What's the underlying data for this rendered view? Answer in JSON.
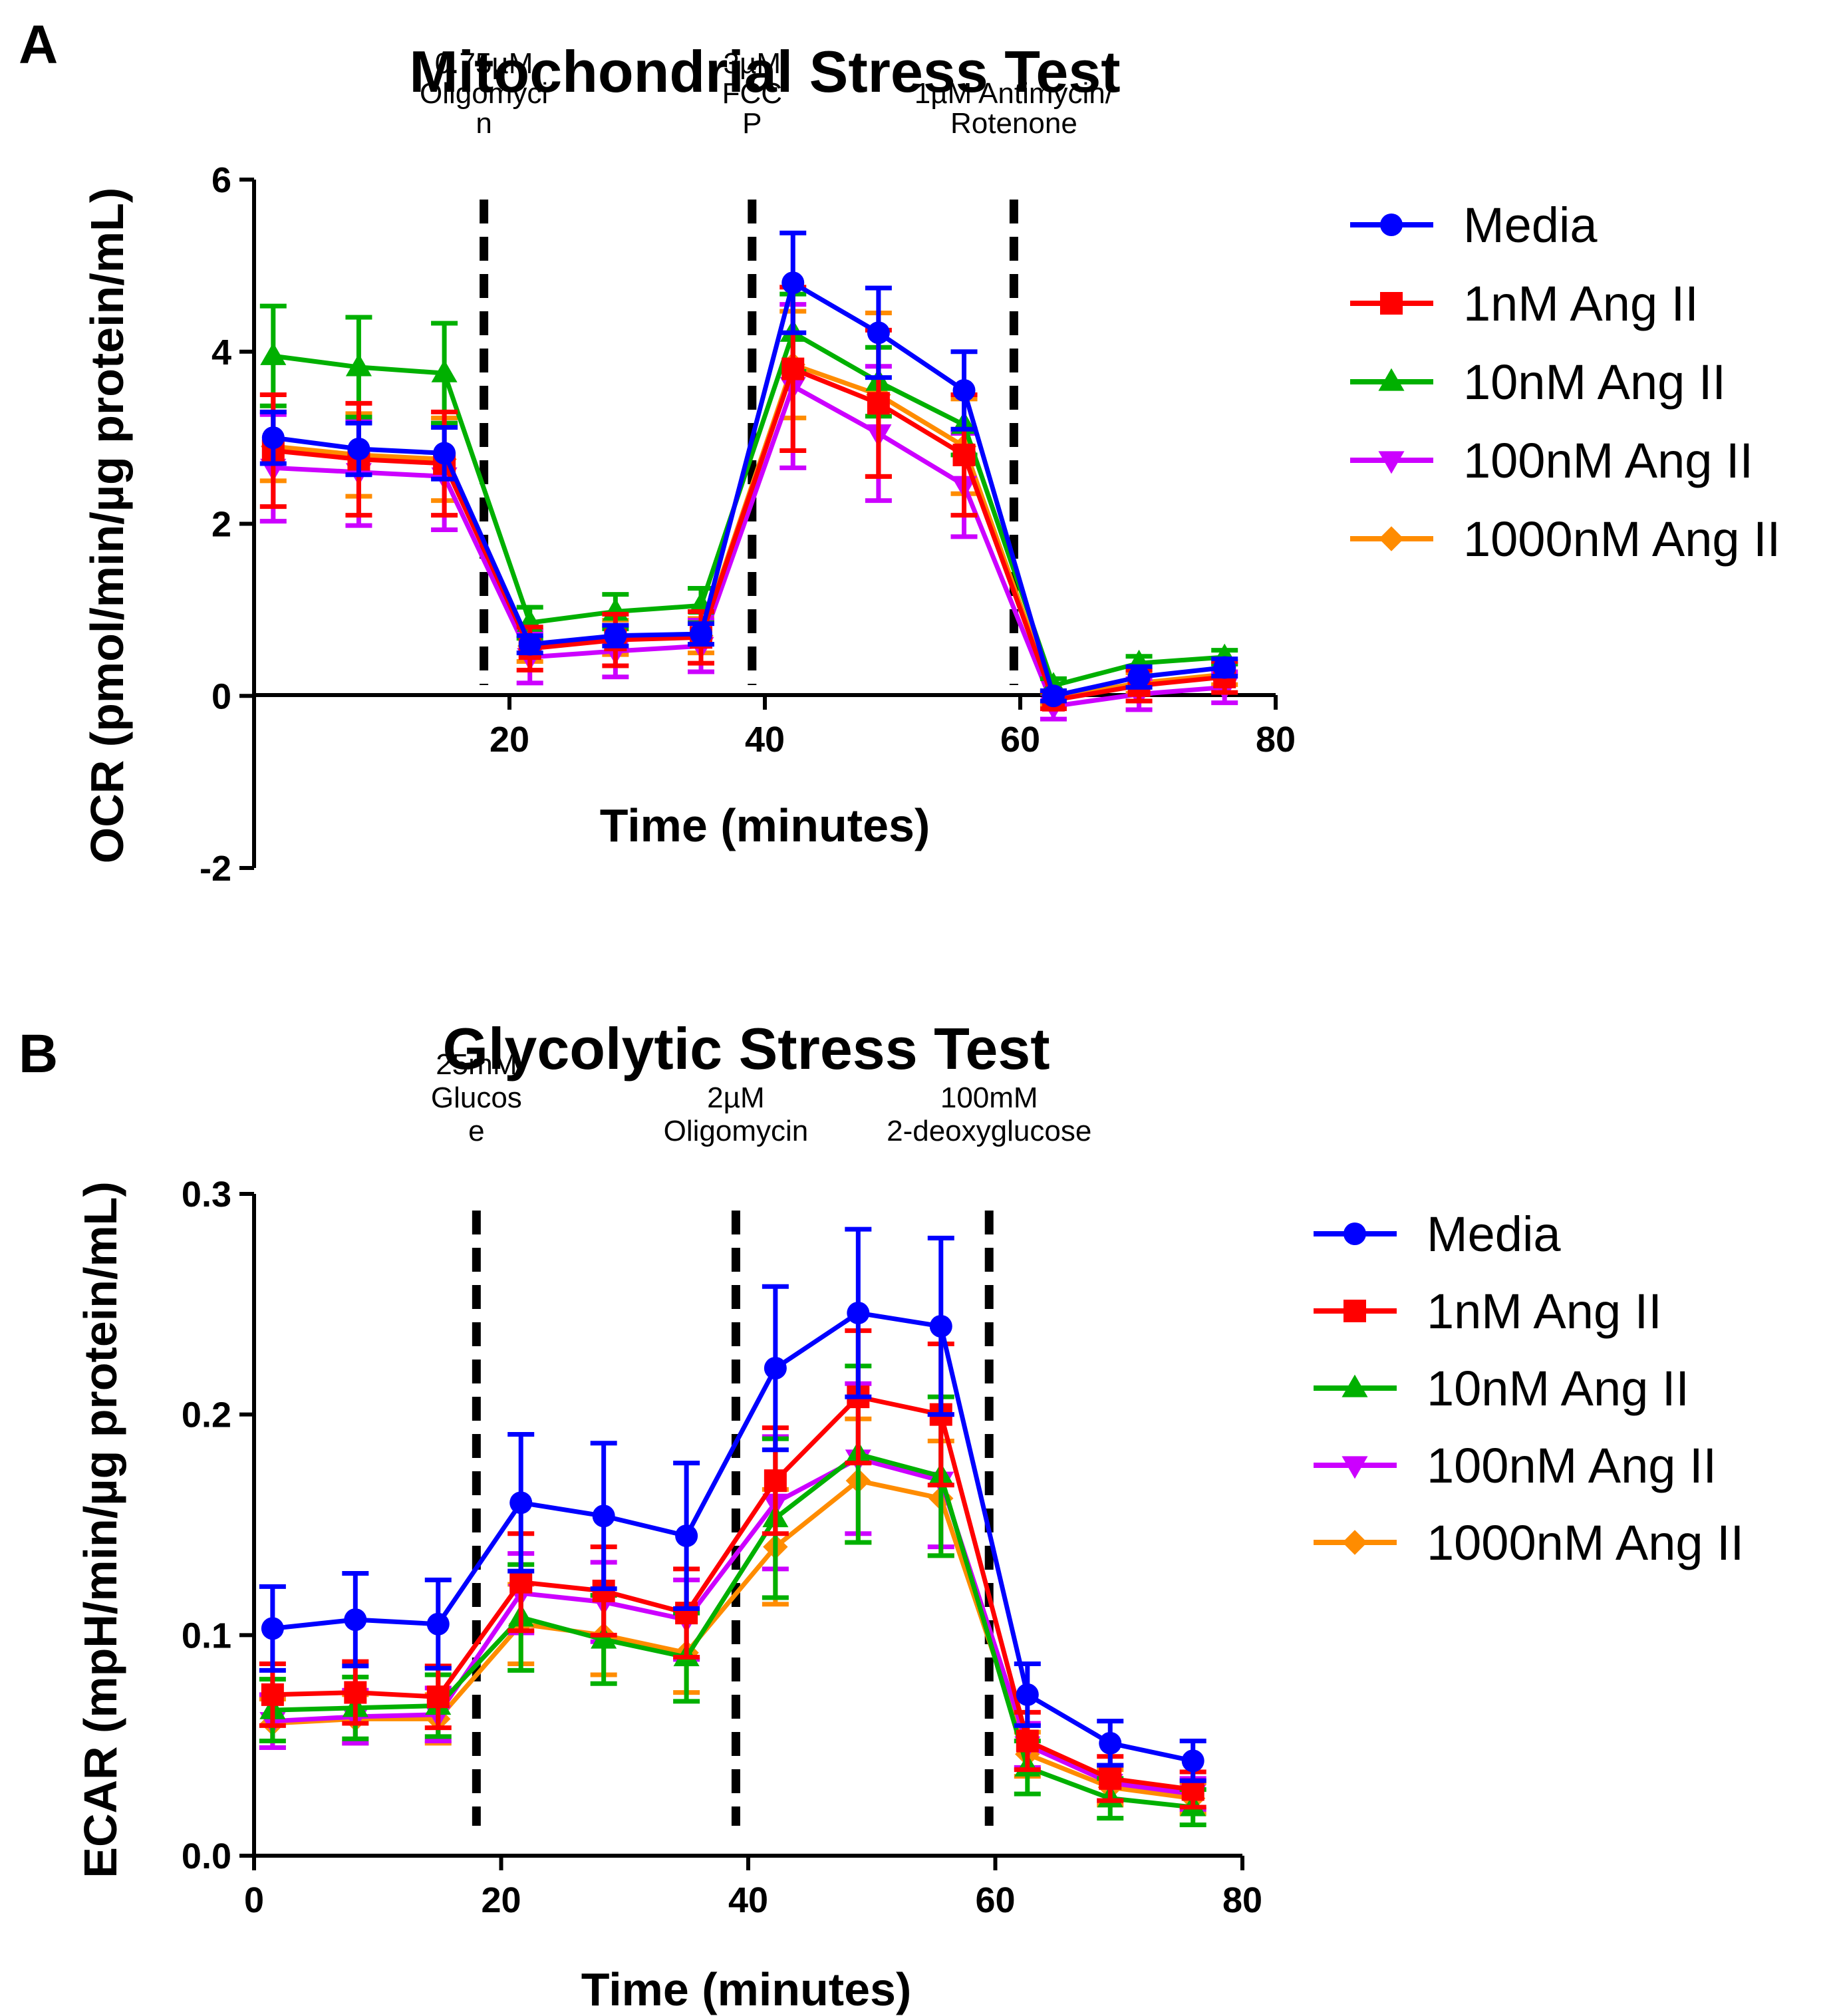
{
  "chart_data": [
    {
      "type": "line",
      "panel_letter": "A",
      "title": "Mitochondrial Stress Test",
      "xlabel": "Time (minutes)",
      "ylabel": "OCR (pmol/min/µg protein/mL)",
      "xlim": [
        0,
        80
      ],
      "ylim": [
        -2,
        6
      ],
      "xticks": [
        20,
        40,
        60,
        80
      ],
      "yticks": [
        -2,
        0,
        2,
        4,
        6
      ],
      "xtick_labels": [
        "20",
        "40",
        "60",
        "80"
      ],
      "ytick_labels": [
        "-2",
        "0",
        "2",
        "4",
        "6"
      ],
      "x": [
        1.5,
        8.2,
        14.9,
        21.6,
        28.3,
        35.0,
        42.2,
        48.9,
        55.6,
        62.6,
        69.3,
        76.0
      ],
      "injections": [
        {
          "x": 18,
          "lines": [
            "0.75µM",
            "Oligomyci",
            "n"
          ]
        },
        {
          "x": 39,
          "lines": [
            "3µM",
            "FCC",
            "P"
          ]
        },
        {
          "x": 59.5,
          "lines": [
            "1µM Antimycin/",
            "Rotenone"
          ]
        }
      ],
      "series": [
        {
          "name": "Media",
          "color": "#0000ff",
          "marker": "circle",
          "values": [
            3.0,
            2.87,
            2.82,
            0.6,
            0.7,
            0.72,
            4.8,
            4.22,
            3.55,
            0.0,
            0.22,
            0.33
          ],
          "errors": [
            0.3,
            0.3,
            0.3,
            0.1,
            0.12,
            0.12,
            0.58,
            0.52,
            0.45,
            0.06,
            0.12,
            0.1
          ]
        },
        {
          "name": "1nM Ang II",
          "color": "#ff0000",
          "marker": "square",
          "values": [
            2.85,
            2.75,
            2.7,
            0.55,
            0.65,
            0.68,
            3.8,
            3.4,
            2.8,
            -0.05,
            0.12,
            0.22
          ],
          "errors": [
            0.65,
            0.65,
            0.6,
            0.25,
            0.3,
            0.3,
            0.95,
            0.85,
            0.7,
            0.1,
            0.18,
            0.18
          ]
        },
        {
          "name": "10nM Ang II",
          "color": "#00b000",
          "marker": "triangle-up",
          "values": [
            3.95,
            3.82,
            3.75,
            0.85,
            0.98,
            1.05,
            4.22,
            3.65,
            3.15,
            0.12,
            0.38,
            0.45
          ],
          "errors": [
            0.58,
            0.58,
            0.58,
            0.18,
            0.2,
            0.2,
            0.45,
            0.4,
            0.35,
            0.08,
            0.08,
            0.08
          ]
        },
        {
          "name": "100nM Ang II",
          "color": "#cc00ff",
          "marker": "triangle-down",
          "values": [
            2.65,
            2.6,
            2.55,
            0.45,
            0.52,
            0.58,
            3.6,
            3.05,
            2.45,
            -0.12,
            0.02,
            0.1
          ],
          "errors": [
            0.62,
            0.62,
            0.62,
            0.3,
            0.3,
            0.3,
            0.95,
            0.78,
            0.6,
            0.15,
            0.18,
            0.18
          ]
        },
        {
          "name": "1000nM Ang II",
          "color": "#ff8c00",
          "marker": "diamond",
          "values": [
            2.9,
            2.8,
            2.75,
            0.58,
            0.68,
            0.7,
            3.85,
            3.5,
            2.9,
            -0.02,
            0.15,
            0.25
          ],
          "errors": [
            0.4,
            0.48,
            0.48,
            0.18,
            0.2,
            0.2,
            0.62,
            0.95,
            0.55,
            0.08,
            0.12,
            0.12
          ]
        }
      ]
    },
    {
      "type": "line",
      "panel_letter": "B",
      "title": "Glycolytic Stress Test",
      "xlabel": "Time (minutes)",
      "ylabel": "ECAR (mpH/min/µg protein/mL)",
      "xlim": [
        0,
        80
      ],
      "ylim": [
        0,
        0.3
      ],
      "xticks": [
        0,
        20,
        40,
        60,
        80
      ],
      "yticks": [
        0,
        0.1,
        0.2,
        0.3
      ],
      "xtick_labels": [
        "0",
        "20",
        "40",
        "60",
        "80"
      ],
      "ytick_labels": [
        "0.0",
        "0.1",
        "0.2",
        "0.3"
      ],
      "x": [
        1.5,
        8.2,
        14.9,
        21.6,
        28.3,
        35.0,
        42.2,
        48.9,
        55.6,
        62.6,
        69.3,
        76.0
      ],
      "injections": [
        {
          "x": 18,
          "lines": [
            "25mM",
            "Glucos",
            "e"
          ]
        },
        {
          "x": 39,
          "lines": [
            "2µM",
            "Oligomycin"
          ]
        },
        {
          "x": 59.5,
          "lines": [
            "100mM",
            "2-deoxyglucose"
          ]
        }
      ],
      "series": [
        {
          "name": "Media",
          "color": "#0000ff",
          "marker": "circle",
          "values": [
            0.103,
            0.107,
            0.105,
            0.16,
            0.154,
            0.145,
            0.221,
            0.246,
            0.24,
            0.073,
            0.051,
            0.043
          ],
          "errors": [
            0.019,
            0.021,
            0.02,
            0.031,
            0.033,
            0.033,
            0.037,
            0.038,
            0.04,
            0.014,
            0.01,
            0.009
          ]
        },
        {
          "name": "1nM Ang II",
          "color": "#ff0000",
          "marker": "square",
          "values": [
            0.073,
            0.074,
            0.072,
            0.124,
            0.12,
            0.11,
            0.17,
            0.208,
            0.2,
            0.052,
            0.035,
            0.03
          ],
          "errors": [
            0.014,
            0.014,
            0.014,
            0.022,
            0.02,
            0.02,
            0.024,
            0.03,
            0.032,
            0.013,
            0.01,
            0.008
          ]
        },
        {
          "name": "10nM Ang II",
          "color": "#00b000",
          "marker": "triangle-up",
          "values": [
            0.066,
            0.067,
            0.068,
            0.108,
            0.098,
            0.09,
            0.153,
            0.182,
            0.172,
            0.04,
            0.026,
            0.022
          ],
          "errors": [
            0.014,
            0.014,
            0.014,
            0.024,
            0.02,
            0.02,
            0.036,
            0.04,
            0.036,
            0.012,
            0.009,
            0.008
          ]
        },
        {
          "name": "100nM Ang II",
          "color": "#cc00ff",
          "marker": "triangle-down",
          "values": [
            0.061,
            0.063,
            0.064,
            0.119,
            0.115,
            0.107,
            0.16,
            0.18,
            0.17,
            0.05,
            0.033,
            0.028
          ],
          "errors": [
            0.012,
            0.012,
            0.012,
            0.018,
            0.018,
            0.018,
            0.03,
            0.034,
            0.03,
            0.01,
            0.008,
            0.007
          ]
        },
        {
          "name": "1000nM Ang II",
          "color": "#ff8c00",
          "marker": "diamond",
          "values": [
            0.06,
            0.062,
            0.062,
            0.105,
            0.1,
            0.092,
            0.14,
            0.17,
            0.162,
            0.046,
            0.031,
            0.026
          ],
          "errors": [
            0.011,
            0.011,
            0.011,
            0.018,
            0.018,
            0.018,
            0.026,
            0.028,
            0.026,
            0.01,
            0.008,
            0.007
          ]
        }
      ]
    }
  ]
}
